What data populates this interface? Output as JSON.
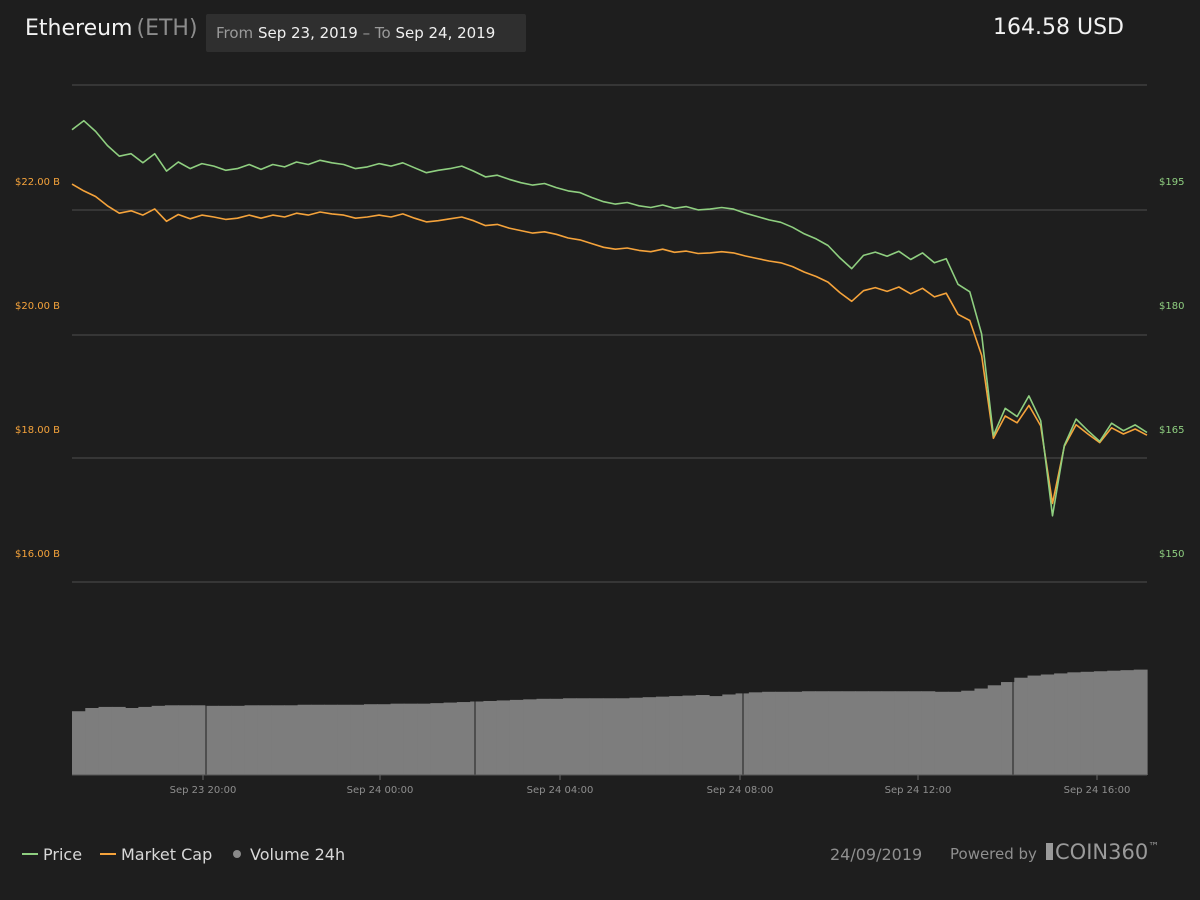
{
  "header": {
    "coin_name": "Ethereum",
    "coin_symbol": "(ETH)",
    "from_label": "From",
    "from_date": "Sep 23, 2019",
    "separator": "–",
    "to_label": "To",
    "to_date": "Sep 24, 2019",
    "current_price": "164.58 USD"
  },
  "chart_data": {
    "type": "line",
    "colors": {
      "price": "#8fcf80",
      "market_cap": "#f5a33b",
      "volume": "#7d7d7d",
      "grid": "#4d4d4d",
      "background": "#1e1e1e"
    },
    "x_ticks": [
      "Sep 23 20:00",
      "Sep 24 00:00",
      "Sep 24 04:00",
      "Sep 24 08:00",
      "Sep 24 12:00",
      "Sep 24 16:00"
    ],
    "left_axis": {
      "ticks": [
        16,
        18,
        20,
        22
      ],
      "tick_labels": [
        "$16.00 B",
        "$18.00 B",
        "$20.00 B",
        "$22.00 B"
      ]
    },
    "right_axis": {
      "ticks": [
        150,
        165,
        180,
        195
      ],
      "tick_labels": [
        "$150",
        "$165",
        "$180",
        "$195"
      ]
    },
    "grid": true,
    "series": [
      {
        "name": "Price",
        "axis": "right",
        "values": [
          201.2,
          202.3,
          201.0,
          199.3,
          198.0,
          198.3,
          197.2,
          198.3,
          196.2,
          197.3,
          196.5,
          197.1,
          196.8,
          196.3,
          196.5,
          197.0,
          196.4,
          197.0,
          196.7,
          197.3,
          197.0,
          197.5,
          197.2,
          197.0,
          196.5,
          196.7,
          197.1,
          196.8,
          197.2,
          196.6,
          196.0,
          196.3,
          196.5,
          196.8,
          196.2,
          195.5,
          195.7,
          195.2,
          194.8,
          194.5,
          194.7,
          194.2,
          193.8,
          193.6,
          193.0,
          192.5,
          192.2,
          192.4,
          192.0,
          191.8,
          192.1,
          191.7,
          191.9,
          191.5,
          191.6,
          191.8,
          191.6,
          191.1,
          190.7,
          190.3,
          190.0,
          189.4,
          188.6,
          188.0,
          187.2,
          185.7,
          184.4,
          186.0,
          186.4,
          185.9,
          186.5,
          185.5,
          186.3,
          185.1,
          185.6,
          182.5,
          181.6,
          176.5,
          164.2,
          167.5,
          166.5,
          169.0,
          166.0,
          154.5,
          163.0,
          166.2,
          164.8,
          163.5,
          165.7,
          164.8,
          165.5,
          164.58
        ],
        "display": "$164.58 (last)"
      },
      {
        "name": "Market Cap",
        "axis": "left",
        "values": [
          21.95,
          21.84,
          21.75,
          21.6,
          21.48,
          21.52,
          21.45,
          21.55,
          21.35,
          21.46,
          21.39,
          21.45,
          21.42,
          21.38,
          21.4,
          21.45,
          21.4,
          21.45,
          21.42,
          21.48,
          21.45,
          21.5,
          21.47,
          21.45,
          21.4,
          21.42,
          21.45,
          21.42,
          21.47,
          21.4,
          21.34,
          21.36,
          21.39,
          21.42,
          21.36,
          21.28,
          21.3,
          21.24,
          21.2,
          21.16,
          21.18,
          21.14,
          21.08,
          21.05,
          20.99,
          20.93,
          20.9,
          20.92,
          20.88,
          20.86,
          20.9,
          20.85,
          20.87,
          20.83,
          20.84,
          20.86,
          20.84,
          20.79,
          20.75,
          20.71,
          20.68,
          20.62,
          20.53,
          20.46,
          20.37,
          20.2,
          20.06,
          20.23,
          20.28,
          20.22,
          20.29,
          20.18,
          20.27,
          20.13,
          20.19,
          19.85,
          19.75,
          19.19,
          17.85,
          18.21,
          18.1,
          18.38,
          18.05,
          16.8,
          17.72,
          18.07,
          17.92,
          17.78,
          18.02,
          17.92,
          18.0,
          17.9
        ]
      },
      {
        "name": "Volume 24h",
        "axis": "none",
        "relative_levels": [
          0.59,
          0.62,
          0.63,
          0.63,
          0.62,
          0.63,
          0.64,
          0.645,
          0.645,
          0.645,
          0.64,
          0.64,
          0.64,
          0.645,
          0.645,
          0.645,
          0.645,
          0.65,
          0.65,
          0.65,
          0.65,
          0.65,
          0.655,
          0.655,
          0.66,
          0.66,
          0.66,
          0.665,
          0.67,
          0.675,
          0.68,
          0.685,
          0.69,
          0.695,
          0.7,
          0.705,
          0.705,
          0.71,
          0.71,
          0.71,
          0.71,
          0.71,
          0.715,
          0.72,
          0.725,
          0.73,
          0.735,
          0.74,
          0.73,
          0.745,
          0.755,
          0.765,
          0.77,
          0.77,
          0.77,
          0.775,
          0.775,
          0.775,
          0.775,
          0.775,
          0.775,
          0.775,
          0.775,
          0.775,
          0.775,
          0.77,
          0.77,
          0.78,
          0.8,
          0.83,
          0.86,
          0.9,
          0.92,
          0.93,
          0.94,
          0.95,
          0.955,
          0.96,
          0.965,
          0.97,
          0.975
        ]
      }
    ]
  },
  "legend": [
    {
      "label": "Price",
      "color": "#8fcf80",
      "marker": "line"
    },
    {
      "label": "Market Cap",
      "color": "#f5a33b",
      "marker": "line"
    },
    {
      "label": "Volume 24h",
      "color": "#8a8a8a",
      "marker": "dot"
    }
  ],
  "footer": {
    "date": "24/09/2019",
    "powered_by": "Powered by",
    "brand": "COIN360",
    "brand_tm": "™"
  }
}
